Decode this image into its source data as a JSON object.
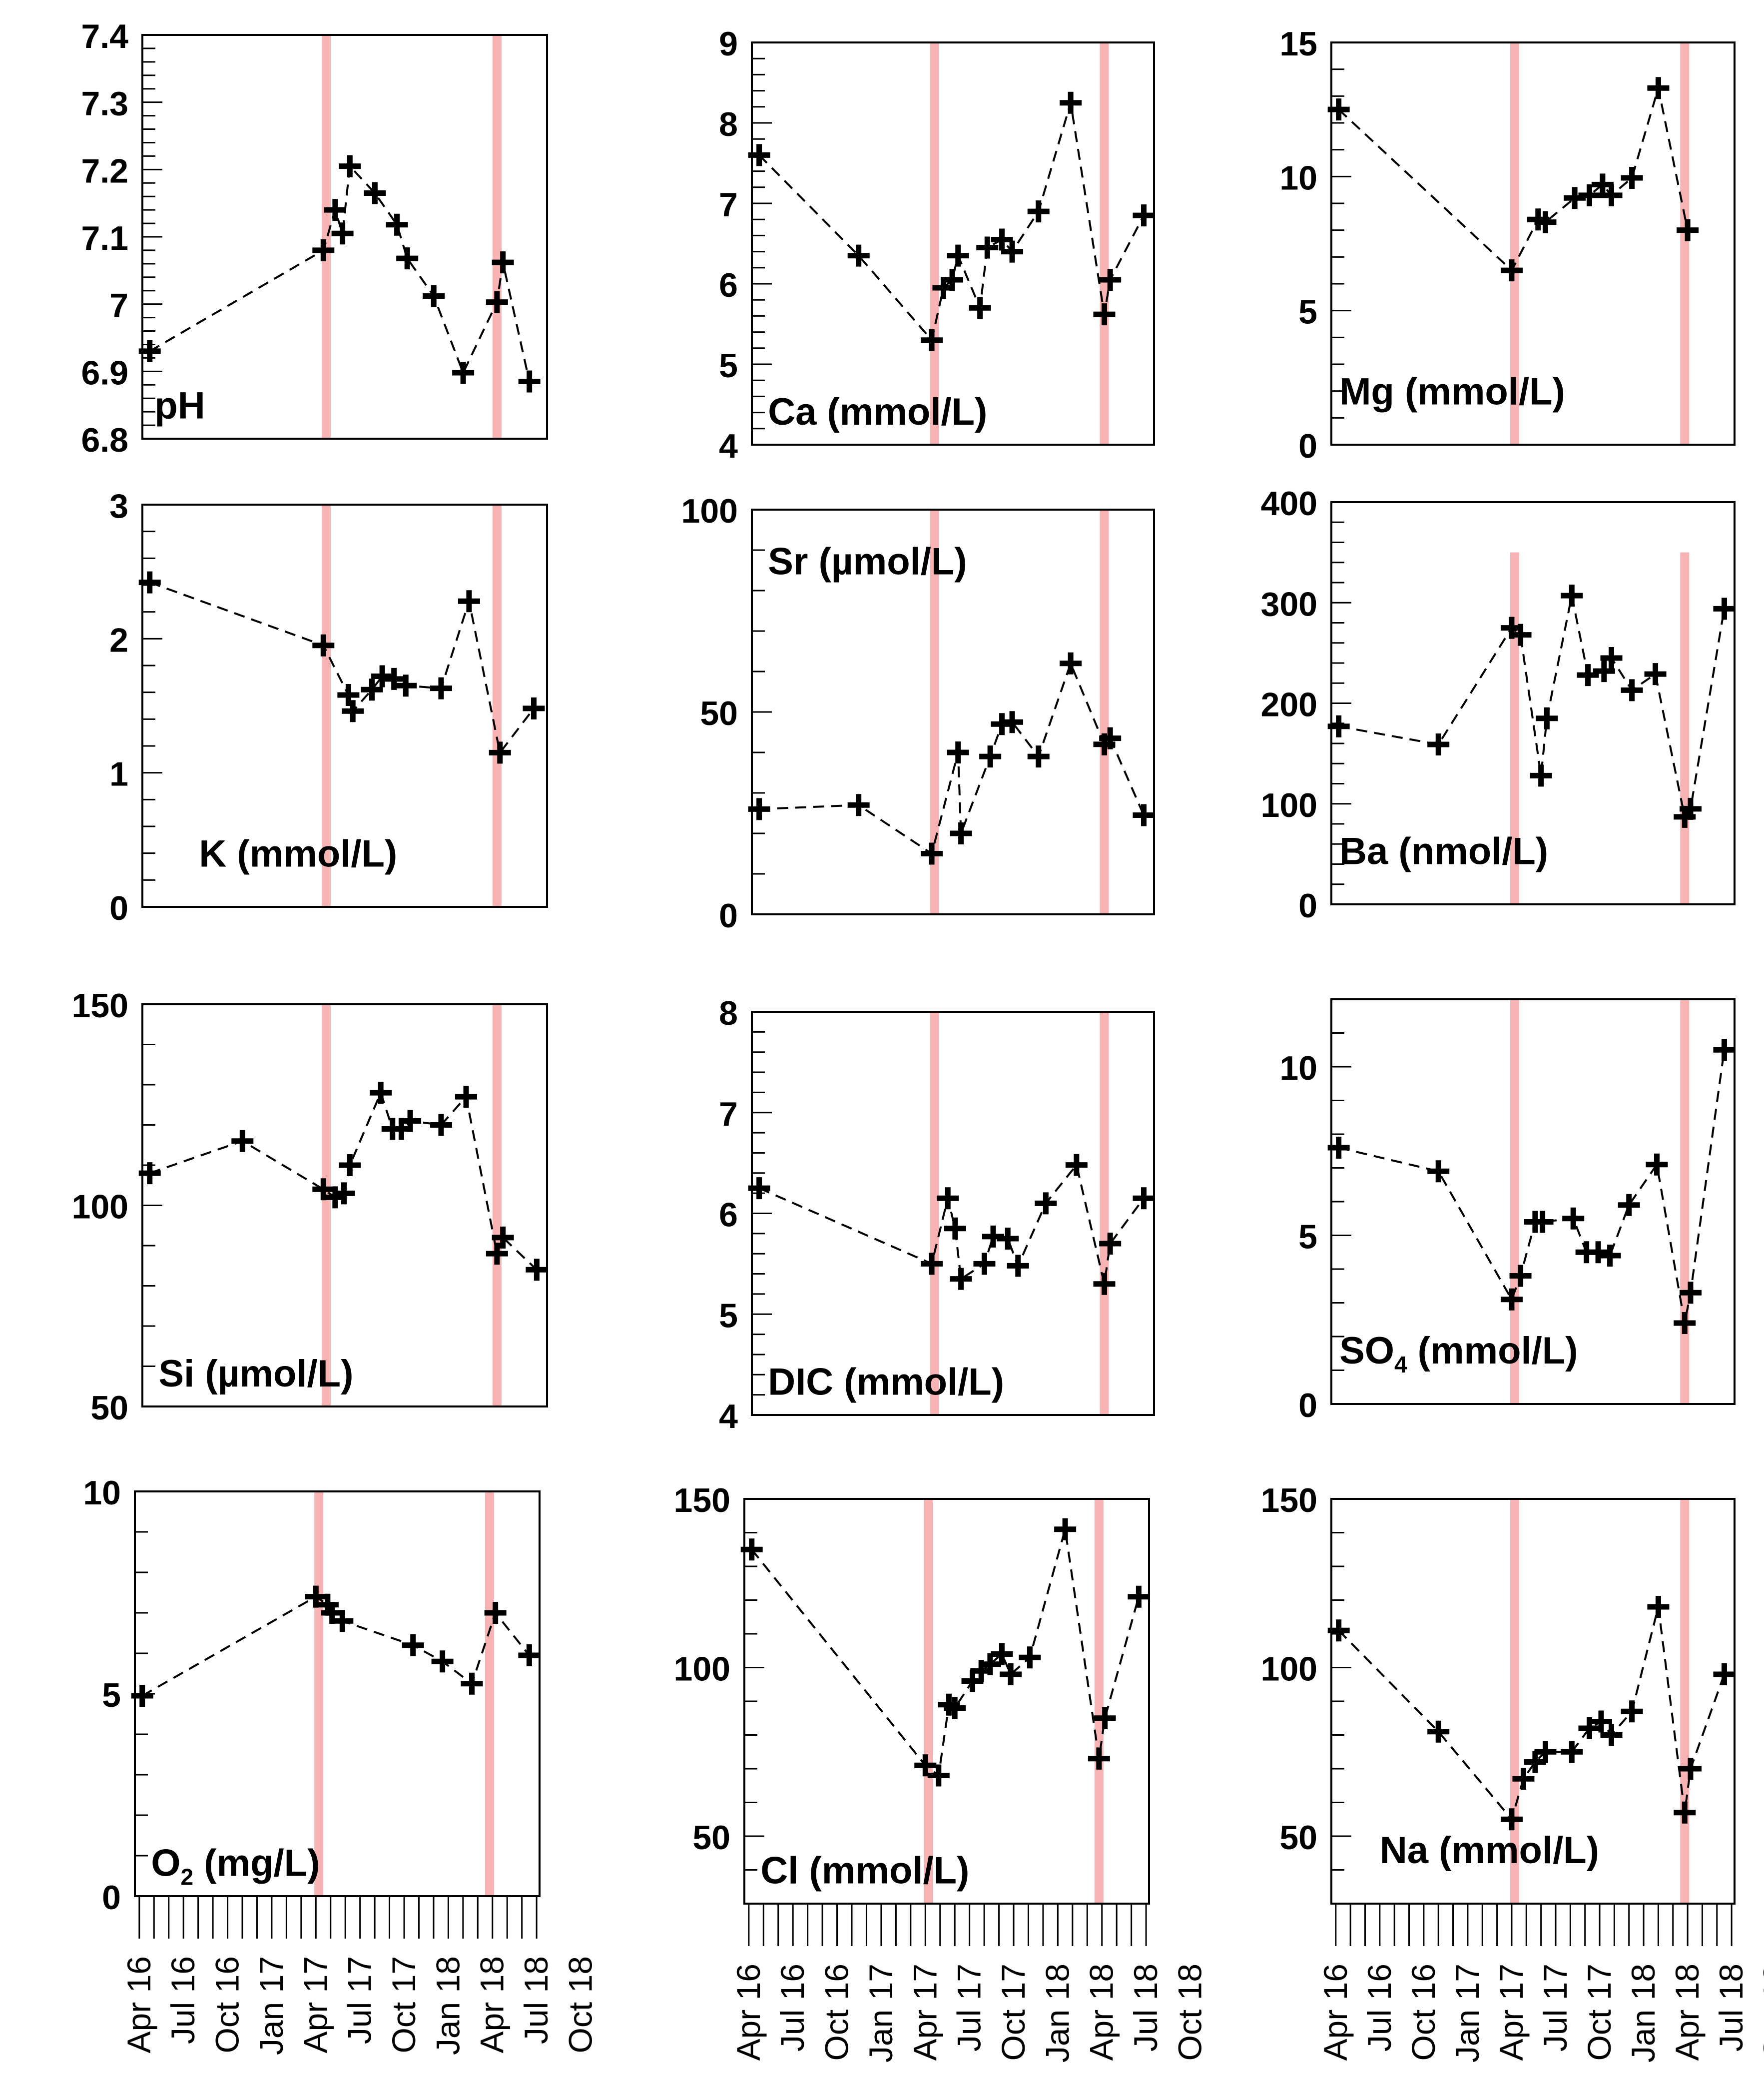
{
  "time_axis": {
    "tick_labels": [
      "Apr 16",
      "Jul 16",
      "Oct 16",
      "Jan 17",
      "Apr 17",
      "Jul 17",
      "Oct 17",
      "Jan 18",
      "Apr 18",
      "Jul 18",
      "Oct 18"
    ],
    "tick_months": [
      0,
      3,
      6,
      9,
      12,
      15,
      18,
      21,
      24,
      27,
      30
    ],
    "unit": "months since Apr 2016"
  },
  "colors": {
    "event_band": "#f8b4b4",
    "series": "#000000"
  },
  "chart_data": [
    {
      "type": "line",
      "title": "pH",
      "ylim": [
        6.8,
        7.4
      ],
      "yticks": [
        6.8,
        6.9,
        7,
        7.1,
        7.2,
        7.3,
        7.4
      ],
      "yticklabels": [
        "6.8",
        "6.9",
        "7",
        "7.1",
        "7.2",
        "7.3",
        "7.4"
      ],
      "events": [
        12.2,
        23.8
      ],
      "x": [
        0.2,
        12,
        12.8,
        13.3,
        13.8,
        15.5,
        17,
        17.7,
        19.5,
        21.5,
        23.8,
        24.2,
        26
      ],
      "y": [
        6.93,
        7.08,
        7.14,
        7.105,
        7.205,
        7.165,
        7.118,
        7.068,
        7.012,
        6.898,
        7.003,
        7.062,
        6.885
      ]
    },
    {
      "type": "line",
      "title": "Ca (mmol/L)",
      "ylim": [
        4,
        9
      ],
      "yticks": [
        4,
        5,
        6,
        7,
        8,
        9
      ],
      "yticklabels": [
        "4",
        "5",
        "6",
        "7",
        "8",
        "9"
      ],
      "events": [
        12.2,
        23.8
      ],
      "x": [
        0.2,
        7,
        12,
        12.8,
        13.4,
        13.8,
        15.3,
        15.8,
        16.8,
        17.5,
        19.3,
        21.5,
        23.8,
        24.2,
        26.5
      ],
      "y": [
        7.6,
        6.35,
        5.3,
        5.95,
        6.05,
        6.35,
        5.7,
        6.45,
        6.55,
        6.4,
        6.9,
        8.25,
        5.62,
        6.05,
        6.85
      ]
    },
    {
      "type": "line",
      "title": "Mg (mmol/L)",
      "ylim": [
        0,
        15
      ],
      "yticks": [
        0,
        5,
        10,
        15
      ],
      "yticklabels": [
        "0",
        "5",
        "10",
        "15"
      ],
      "events": [
        12.2,
        23.8
      ],
      "x": [
        0.2,
        12,
        13.8,
        14.3,
        16.3,
        17.3,
        18.2,
        18.8,
        20.2,
        22,
        24
      ],
      "y": [
        12.5,
        6.5,
        8.4,
        8.3,
        9.2,
        9.3,
        9.7,
        9.3,
        9.95,
        13.3,
        8
      ],
      "title_sub": ""
    },
    {
      "type": "line",
      "title": "K (mmol/L)",
      "ylim": [
        0,
        3
      ],
      "yticks": [
        0,
        1,
        2,
        3
      ],
      "yticklabels": [
        "0",
        "1",
        "2",
        "3"
      ],
      "events": [
        12.2,
        23.8
      ],
      "x": [
        0.2,
        12,
        13.7,
        14,
        15.3,
        16,
        16.8,
        17.6,
        20,
        21.9,
        24,
        26.3
      ],
      "y": [
        2.42,
        1.95,
        1.58,
        1.46,
        1.62,
        1.72,
        1.7,
        1.65,
        1.63,
        2.28,
        1.15,
        1.48
      ]
    },
    {
      "type": "line",
      "title": "Sr (µmol/L)",
      "ylim": [
        0,
        100
      ],
      "yticks": [
        0,
        50,
        100
      ],
      "yticklabels": [
        "0",
        "50",
        "100"
      ],
      "events": [
        12.2,
        23.8
      ],
      "x": [
        0.2,
        7,
        12,
        13.8,
        14,
        16,
        16.8,
        17.5,
        19.3,
        21.5,
        23.8,
        24.2,
        26.5
      ],
      "y": [
        26,
        27,
        15,
        40,
        20,
        39,
        47,
        47.5,
        39,
        62,
        42,
        43.5,
        24.5
      ]
    },
    {
      "type": "line",
      "title": "Ba (nmol/L)",
      "ylim": [
        0,
        400
      ],
      "yticks": [
        0,
        100,
        200,
        300,
        400
      ],
      "yticklabels": [
        "0",
        "100",
        "200",
        "300",
        "400"
      ],
      "events": [
        12.2,
        23.8
      ],
      "event_ymax": 350,
      "x": [
        0.2,
        7,
        12,
        12.6,
        14,
        14.4,
        16.1,
        17.2,
        18.3,
        18.8,
        20.2,
        21.8,
        23.8,
        24.2,
        26.5
      ],
      "y": [
        177,
        159,
        275,
        268,
        128,
        185,
        307,
        228,
        232,
        245,
        213,
        229,
        87,
        95,
        294
      ]
    },
    {
      "type": "line",
      "title": "Si (µmol/L)",
      "ylim": [
        50,
        150
      ],
      "yticks": [
        50,
        100,
        150
      ],
      "yticklabels": [
        "50",
        "100",
        "150"
      ],
      "events": [
        12.2,
        23.8
      ],
      "x": [
        0.2,
        6.5,
        12,
        12.8,
        13.4,
        13.8,
        15.9,
        16.7,
        17.3,
        17.9,
        20,
        21.7,
        23.8,
        24.2,
        26.5
      ],
      "y": [
        108,
        116,
        104,
        102,
        103,
        110,
        128,
        119,
        119,
        121,
        120,
        127,
        88,
        92,
        84
      ]
    },
    {
      "type": "line",
      "title": "DIC (mmol/L)",
      "ylim": [
        4,
        8
      ],
      "yticks": [
        4,
        5,
        6,
        7,
        8
      ],
      "yticklabels": [
        "4",
        "5",
        "6",
        "7",
        "8"
      ],
      "events": [
        12.2,
        23.8
      ],
      "x": [
        0.2,
        12,
        13.1,
        13.6,
        14,
        15.6,
        16.2,
        17.2,
        17.9,
        19.8,
        21.9,
        23.8,
        24.2,
        26.5
      ],
      "y": [
        6.25,
        5.5,
        6.15,
        5.85,
        5.35,
        5.5,
        5.77,
        5.75,
        5.48,
        6.1,
        6.48,
        5.3,
        5.7,
        6.15
      ]
    },
    {
      "type": "line",
      "title": "SO",
      "title_sub": "4",
      "title_tail": " (mmol/L)",
      "ylim": [
        0,
        12
      ],
      "yticks": [
        0,
        5,
        10
      ],
      "yticklabels": [
        "0",
        "5",
        "10"
      ],
      "events": [
        12.2,
        23.8
      ],
      "x": [
        0.2,
        7,
        12,
        12.6,
        13.6,
        14.1,
        16.2,
        17.1,
        17.9,
        18.7,
        20,
        21.9,
        23.8,
        24.2,
        26.5
      ],
      "y": [
        7.6,
        6.9,
        3.1,
        3.8,
        5.4,
        5.4,
        5.5,
        4.5,
        4.5,
        4.4,
        5.9,
        7.1,
        2.4,
        3.3,
        10.5
      ]
    },
    {
      "type": "line",
      "title": "O",
      "title_sub": "2",
      "title_tail": " (mg/L)",
      "ylim": [
        0,
        10
      ],
      "yticks": [
        0,
        5,
        10
      ],
      "yticklabels": [
        "0",
        "5",
        "10"
      ],
      "events": [
        12.2,
        23.8
      ],
      "x": [
        0.2,
        12,
        12.8,
        13.1,
        13.8,
        18.6,
        20.6,
        22.6,
        24.2,
        26.5
      ],
      "y": [
        4.95,
        7.4,
        7.2,
        7.0,
        6.8,
        6.2,
        5.8,
        5.25,
        7.0,
        5.95
      ]
    },
    {
      "type": "line",
      "title": "Cl (mmol/L)",
      "ylim": [
        30,
        150
      ],
      "yticks": [
        50,
        100,
        150
      ],
      "yticklabels": [
        "50",
        "100",
        "150"
      ],
      "events": [
        12.2,
        23.8
      ],
      "x": [
        0.2,
        12,
        12.9,
        13.6,
        14,
        15.2,
        15.8,
        16.4,
        17.2,
        17.8,
        19.1,
        21.5,
        23.8,
        24.2,
        26.5
      ],
      "y": [
        135,
        71,
        68,
        89,
        88,
        96,
        99,
        101,
        104,
        98,
        103,
        141,
        73,
        85,
        121
      ]
    },
    {
      "type": "line",
      "title": "Na (mmol/L)",
      "ylim": [
        30,
        150
      ],
      "yticks": [
        50,
        100,
        150
      ],
      "yticklabels": [
        "50",
        "100",
        "150"
      ],
      "events": [
        12.2,
        23.8
      ],
      "x": [
        0.2,
        7,
        12,
        12.8,
        13.6,
        14.3,
        16.1,
        17.3,
        18.1,
        18.8,
        20.2,
        22,
        23.8,
        24.2,
        26.5
      ],
      "y": [
        111,
        81,
        55,
        67,
        72,
        75,
        75,
        82,
        84,
        80,
        87,
        118,
        57,
        70,
        98
      ]
    }
  ]
}
